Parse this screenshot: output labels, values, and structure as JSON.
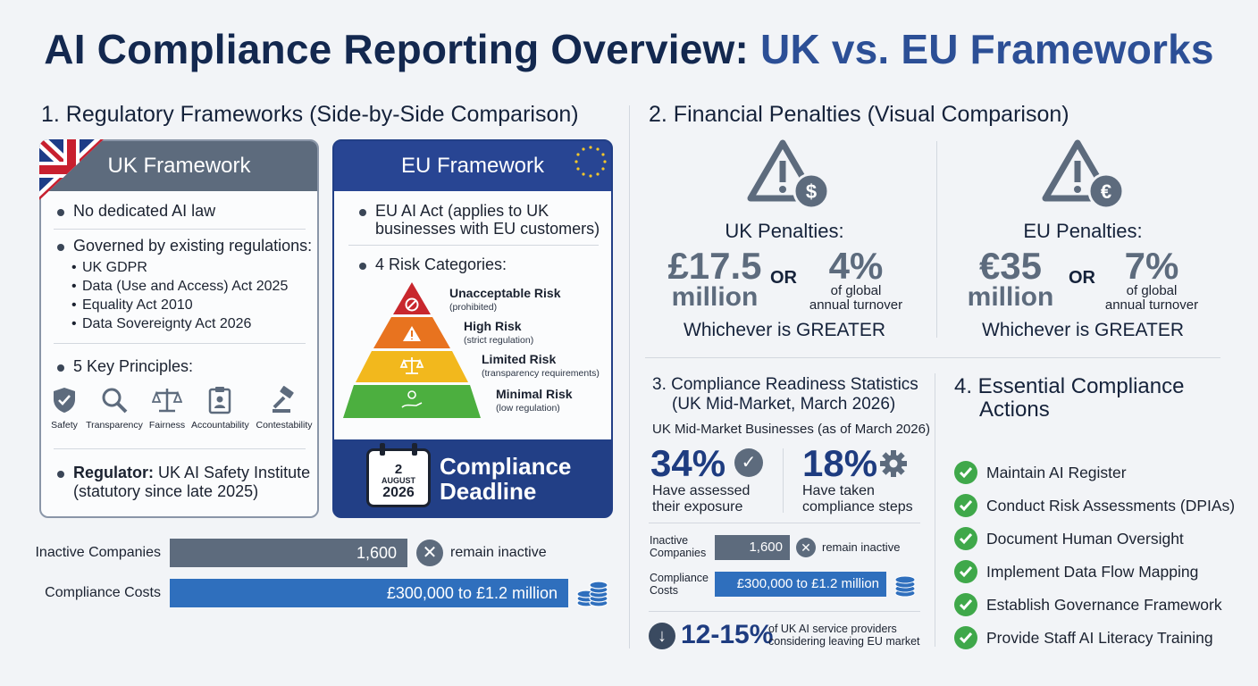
{
  "title": {
    "main": "AI Compliance Reporting Overview: ",
    "highlight": "UK vs. EU Frameworks"
  },
  "section1": {
    "heading": "1. Regulatory Frameworks (Side-by-Side Comparison)",
    "uk": {
      "header": "UK Framework",
      "bullet1": "No dedicated AI law",
      "bullet2": "Governed by existing regulations:",
      "regs": [
        "UK GDPR",
        "Data (Use and Access) Act 2025",
        "Equality Act 2010",
        "Data Sovereignty Act 2026"
      ],
      "principles_heading": "5 Key Principles:",
      "principles": [
        {
          "label": "Safety",
          "icon": "shield-icon"
        },
        {
          "label": "Transparency",
          "icon": "magnifier-icon"
        },
        {
          "label": "Fairness",
          "icon": "scales-icon"
        },
        {
          "label": "Accountability",
          "icon": "clipboard-icon"
        },
        {
          "label": "Contestability",
          "icon": "gavel-icon"
        }
      ],
      "regulator_label": "Regulator:",
      "regulator_text": " UK AI Safety Institute",
      "regulator_note": "(statutory since late 2025)"
    },
    "eu": {
      "header": "EU Framework",
      "act_label": "EU AI Act",
      "act_text": " (applies to UK",
      "act_text2": "businesses with EU customers)",
      "risk_heading": "4 Risk Categories:",
      "risks": [
        {
          "name": "Unacceptable Risk",
          "note": "(prohibited)",
          "color": "#c8272d"
        },
        {
          "name": "High Risk",
          "note": "(strict regulation)",
          "color": "#e8731f"
        },
        {
          "name": "Limited Risk",
          "note": "(transparency requirements)",
          "color": "#f2b81d"
        },
        {
          "name": "Minimal Risk",
          "note": "(low regulation)",
          "color": "#4caf3f"
        }
      ],
      "deadline_day": "2",
      "deadline_month": "AUGUST",
      "deadline_year": "2026",
      "deadline_label1": "Compliance",
      "deadline_label2": "Deadline"
    },
    "bars": [
      {
        "label": "Inactive Companies",
        "value": "1,600",
        "suffix": "remain inactive",
        "color": "#5d6b7d"
      },
      {
        "label": "Compliance Costs",
        "value": "£300,000 to £1.2 million",
        "color": "#2f6fbd"
      }
    ]
  },
  "section2": {
    "heading": "2. Financial Penalties (Visual Comparison)",
    "uk": {
      "title": "UK Penalties:",
      "amount": "£17.5",
      "amount_unit": "million",
      "or": "OR",
      "pct": "4%",
      "pct_note1": "of global",
      "pct_note2": "annual turnover",
      "greater": "Whichever is GREATER"
    },
    "eu": {
      "title": "EU Penalties:",
      "amount": "€35",
      "amount_unit": "million",
      "or": "OR",
      "pct": "7%",
      "pct_note1": "of global",
      "pct_note2": "annual turnover",
      "greater": "Whichever is GREATER"
    }
  },
  "section3": {
    "heading1": "3. Compliance Readiness Statistics",
    "heading2": "(UK Mid-Market, March 2026)",
    "subheading": "UK Mid-Market Businesses",
    "subheading_note": " (as of March 2026)",
    "stat1": {
      "value": "34%",
      "desc1": "Have assessed",
      "desc2": "their exposure"
    },
    "stat2": {
      "value": "18%",
      "desc1": "Have taken",
      "desc2": "compliance steps"
    },
    "bars": [
      {
        "label1": "Inactive",
        "label2": "Companies",
        "value": "1,600",
        "suffix": "remain inactive",
        "color": "#5d6b7d"
      },
      {
        "label1": "Compliance",
        "label2": "Costs",
        "value": "£300,000 to £1.2 million",
        "color": "#2f6fbd"
      }
    ],
    "leaving": {
      "value": "12-15%",
      "desc1": "of UK AI service providers",
      "desc2": "considering leaving EU market"
    }
  },
  "section4": {
    "heading1": "4. Essential Compliance",
    "heading2": "Actions",
    "actions": [
      "Maintain AI Register",
      "Conduct Risk Assessments (DPIAs)",
      "Document Human Oversight",
      "Implement Data Flow Mapping",
      "Establish Governance Framework",
      "Provide Staff AI Literacy Training"
    ]
  }
}
